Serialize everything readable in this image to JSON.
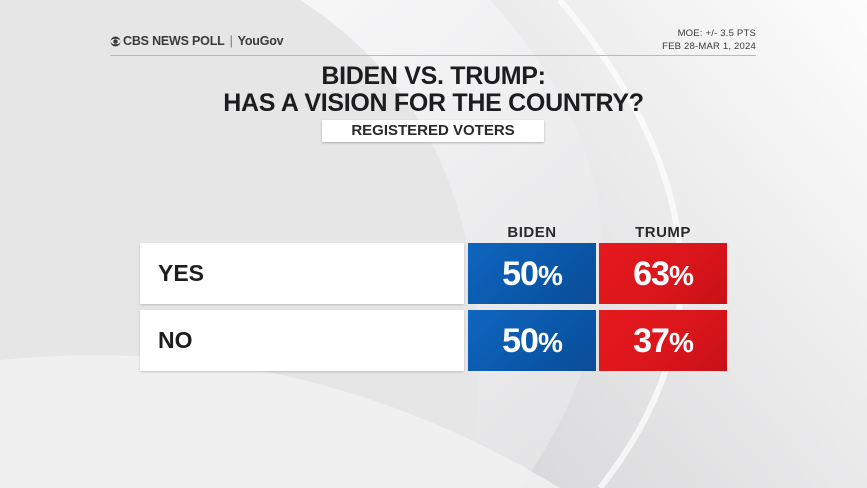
{
  "header": {
    "brand": "CBS NEWS POLL",
    "partner": "YouGov",
    "separator": "|",
    "moe": "MOE: +/- 3.5 PTS",
    "dates": "FEB 28-MAR 1, 2024"
  },
  "chart_data": {
    "type": "table",
    "title_line1": "BIDEN VS. TRUMP:",
    "title_line2": "HAS A VISION FOR THE COUNTRY?",
    "subtitle": "REGISTERED VOTERS",
    "columns": [
      "BIDEN",
      "TRUMP"
    ],
    "rows": [
      {
        "label": "YES",
        "values": [
          50,
          63
        ],
        "display": [
          "50",
          "63"
        ]
      },
      {
        "label": "NO",
        "values": [
          50,
          37
        ],
        "display": [
          "50",
          "37"
        ]
      }
    ],
    "unit": "%"
  },
  "colors": {
    "biden": "#0a5cb3",
    "trump": "#df181d",
    "background": "#e9e9ea",
    "text": "#1d1d1f"
  },
  "icons": {
    "brand_logo": "cbs-eye-icon"
  }
}
